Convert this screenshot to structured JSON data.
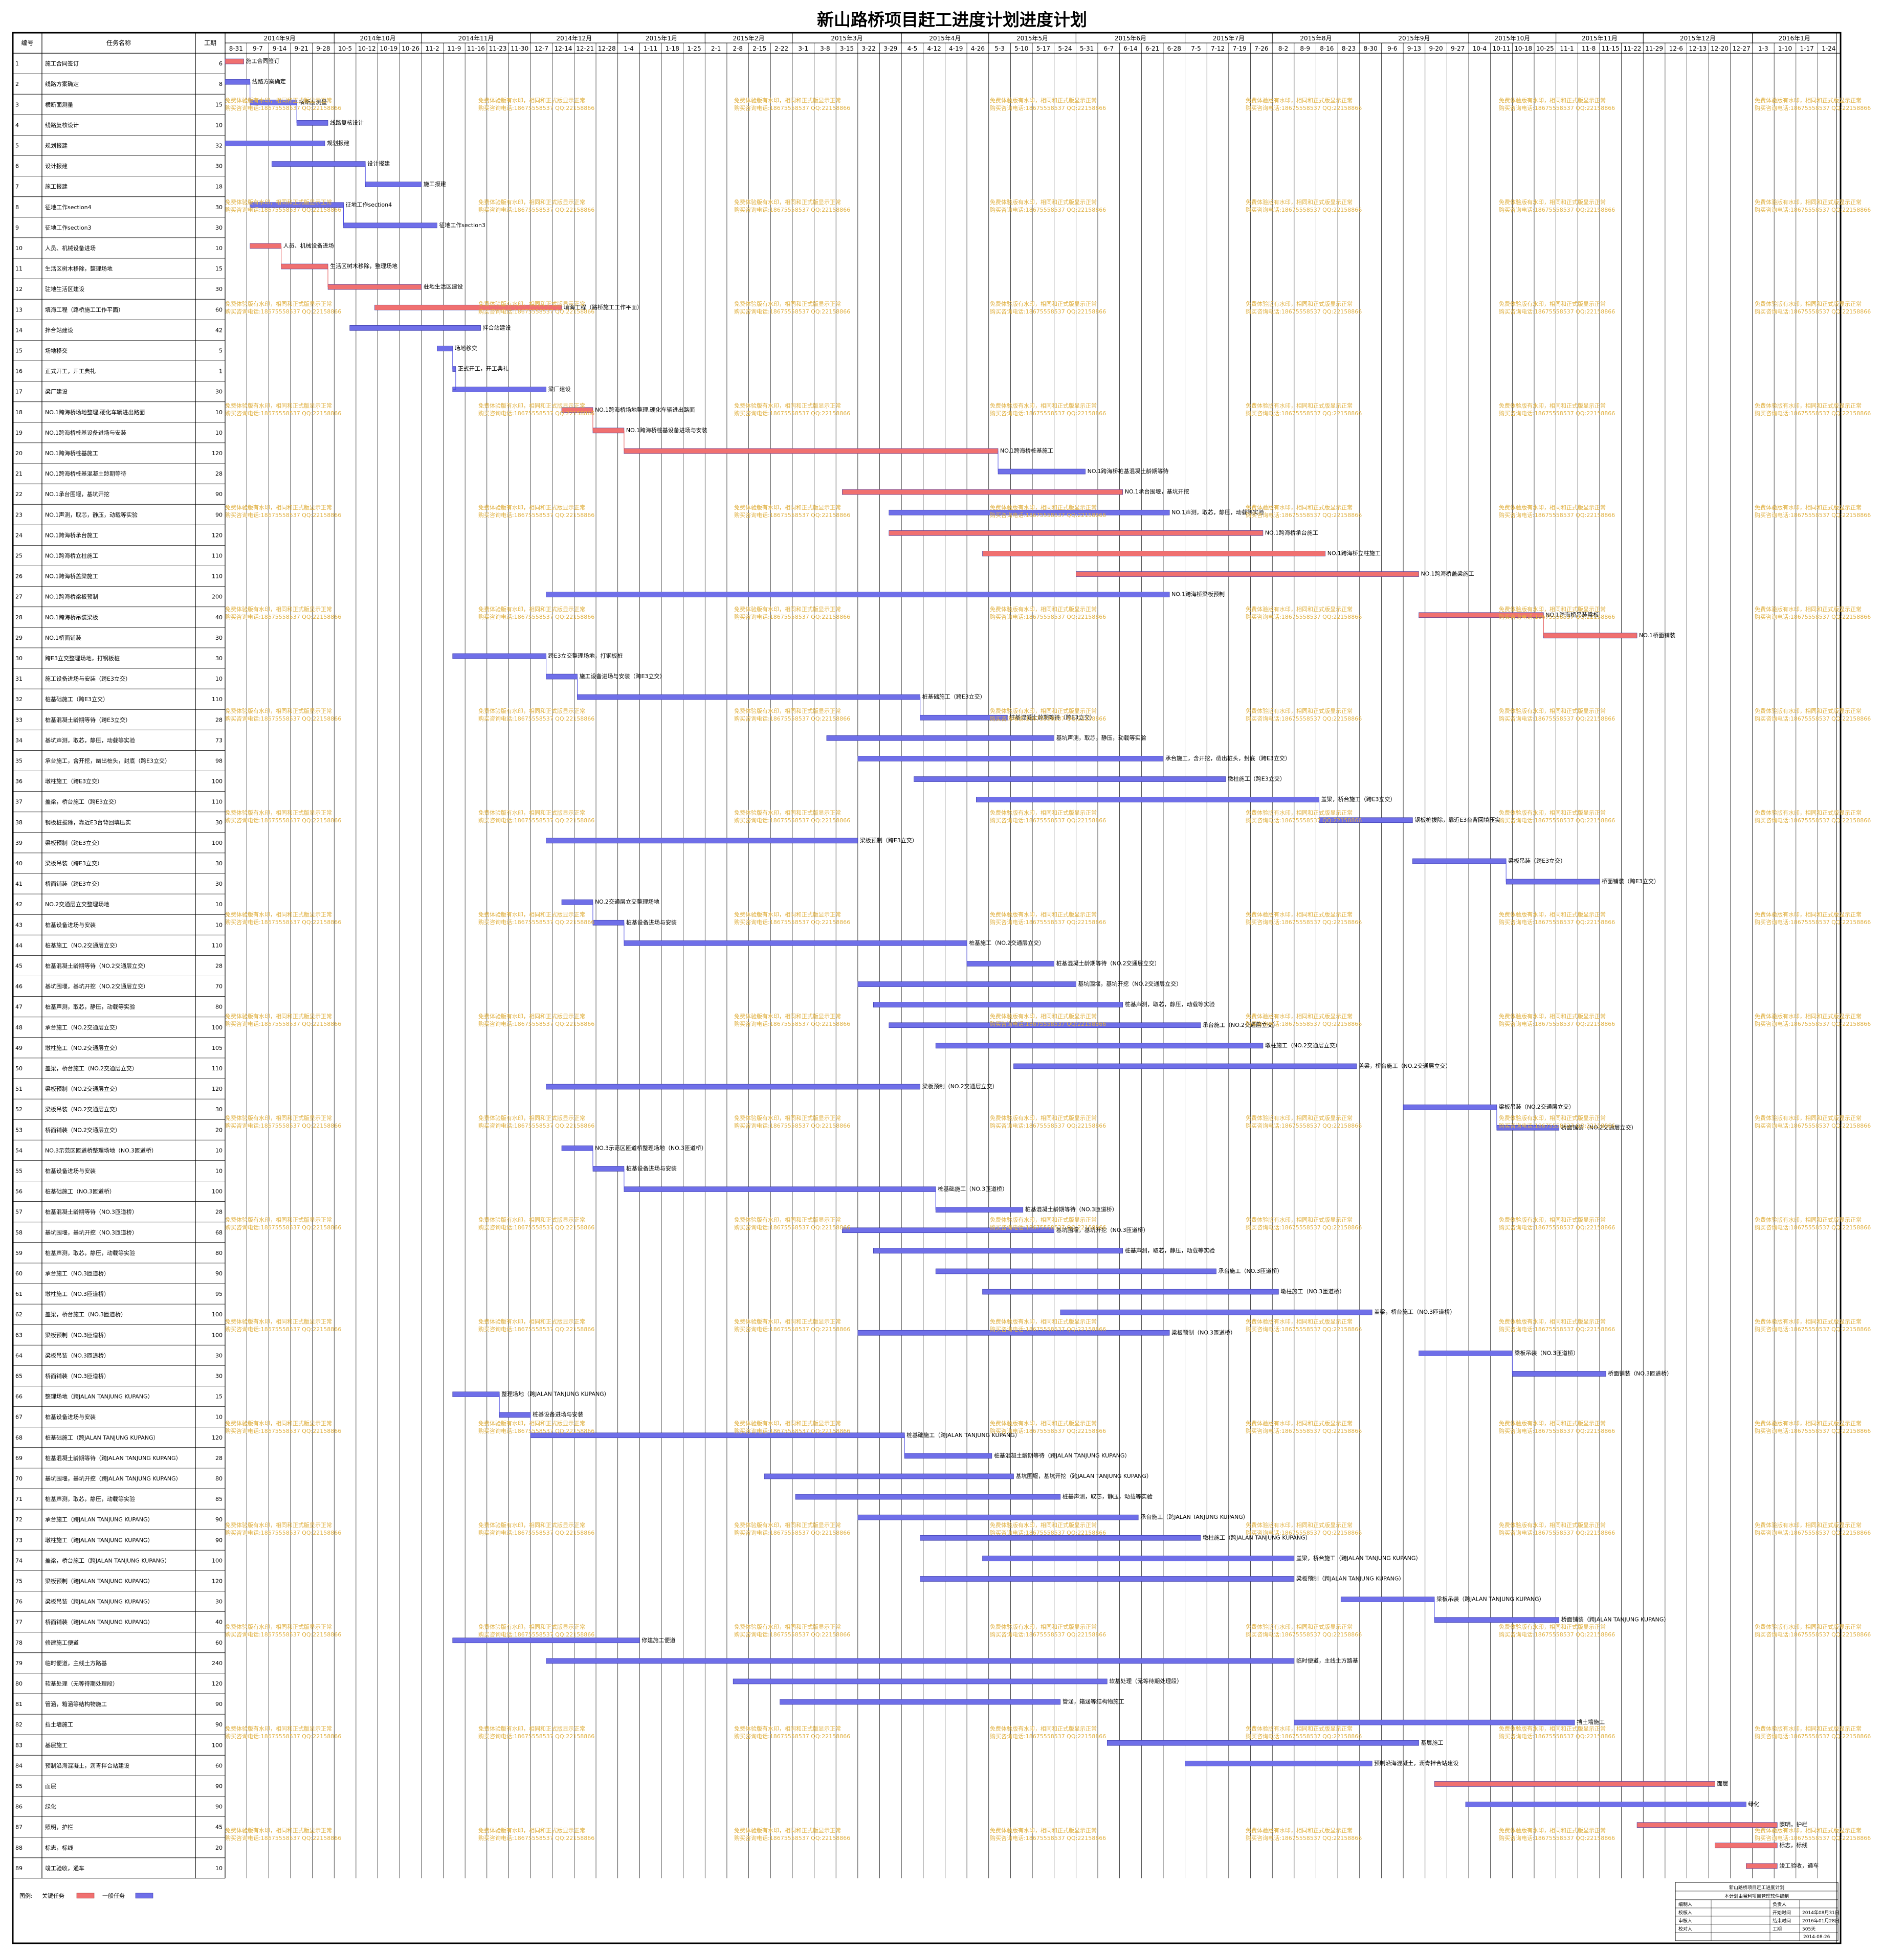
{
  "title": "新山路桥项目赶工进度计划进度计划",
  "columns": {
    "id": "编号",
    "name": "任务名称",
    "dur": "工期"
  },
  "colors": {
    "critical": "#f07070",
    "normal": "#6f6fe8",
    "link_normal": "#4a4ae0",
    "link_critical": "#e04848",
    "grid": "#000000",
    "watermark": "#e0b040"
  },
  "chart_data": {
    "type": "gantt",
    "title": "新山路桥项目赶工进度计划进度计划",
    "time_unit": "days since 2014-08-31",
    "months": [
      {
        "label": "2014年9月",
        "start": 0
      },
      {
        "label": "2014年10月",
        "start": 35
      },
      {
        "label": "2014年11月",
        "start": 63
      },
      {
        "label": "2014年12月",
        "start": 98
      },
      {
        "label": "2015年1月",
        "start": 126
      },
      {
        "label": "2015年2月",
        "start": 154
      },
      {
        "label": "2015年3月",
        "start": 182
      },
      {
        "label": "2015年4月",
        "start": 217
      },
      {
        "label": "2015年5月",
        "start": 245
      },
      {
        "label": "2015年6月",
        "start": 273
      },
      {
        "label": "2015年7月",
        "start": 308
      },
      {
        "label": "2015年8月",
        "start": 336
      },
      {
        "label": "2015年9月",
        "start": 364
      },
      {
        "label": "2015年10月",
        "start": 399
      },
      {
        "label": "2015年11月",
        "start": 427
      },
      {
        "label": "2015年12月",
        "start": 455
      },
      {
        "label": "2016年1月",
        "start": 490
      }
    ],
    "weeks": [
      "8-31",
      "9-7",
      "9-14",
      "9-21",
      "9-28",
      "10-5",
      "10-12",
      "10-19",
      "10-26",
      "11-2",
      "11-9",
      "11-16",
      "11-23",
      "11-30",
      "12-7",
      "12-14",
      "12-21",
      "12-28",
      "1-4",
      "1-11",
      "1-18",
      "1-25",
      "2-1",
      "2-8",
      "2-15",
      "2-22",
      "3-1",
      "3-8",
      "3-15",
      "3-22",
      "3-29",
      "4-5",
      "4-12",
      "4-19",
      "4-26",
      "5-3",
      "5-10",
      "5-17",
      "5-24",
      "5-31",
      "6-7",
      "6-14",
      "6-21",
      "6-28",
      "7-5",
      "7-12",
      "7-19",
      "7-26",
      "8-2",
      "8-9",
      "8-16",
      "8-23",
      "8-30",
      "9-6",
      "9-13",
      "9-20",
      "9-27",
      "10-4",
      "10-11",
      "10-18",
      "10-25",
      "11-1",
      "11-8",
      "11-15",
      "11-22",
      "11-29",
      "12-6",
      "12-13",
      "12-20",
      "12-27",
      "1-3",
      "1-10",
      "1-17",
      "1-24"
    ],
    "tasks": [
      {
        "id": "1",
        "name": "施工合同签订",
        "dur": "6",
        "start": 0,
        "type": "critical"
      },
      {
        "id": "2",
        "name": "线路方案确定",
        "dur": "8",
        "start": 0,
        "type": "normal"
      },
      {
        "id": "3",
        "name": "横断面测量",
        "dur": "15",
        "start": 8,
        "type": "normal"
      },
      {
        "id": "4",
        "name": "线路复核设计",
        "dur": "10",
        "start": 23,
        "type": "normal"
      },
      {
        "id": "5",
        "name": "规划报建",
        "dur": "32",
        "start": 0,
        "type": "normal"
      },
      {
        "id": "6",
        "name": "设计报建",
        "dur": "30",
        "start": 15,
        "type": "normal"
      },
      {
        "id": "7",
        "name": "施工报建",
        "dur": "18",
        "start": 45,
        "type": "normal"
      },
      {
        "id": "8",
        "name": "征地工作section4",
        "dur": "30",
        "start": 8,
        "type": "normal"
      },
      {
        "id": "9",
        "name": "征地工作section3",
        "dur": "30",
        "start": 38,
        "type": "normal"
      },
      {
        "id": "10",
        "name": "人员、机械设备进场",
        "dur": "10",
        "start": 8,
        "type": "critical"
      },
      {
        "id": "11",
        "name": "生活区树木移除，整理场地",
        "dur": "15",
        "start": 18,
        "type": "critical"
      },
      {
        "id": "12",
        "name": "驻地生活区建设",
        "dur": "30",
        "start": 33,
        "type": "critical"
      },
      {
        "id": "13",
        "name": "填海工程（路桥施工工作平面）",
        "dur": "60",
        "start": 48,
        "type": "critical"
      },
      {
        "id": "14",
        "name": "拌合站建设",
        "dur": "42",
        "start": 40,
        "type": "normal"
      },
      {
        "id": "15",
        "name": "场地移交",
        "dur": "5",
        "start": 68,
        "type": "normal"
      },
      {
        "id": "16",
        "name": "正式开工，开工典礼",
        "dur": "1",
        "start": 73,
        "type": "normal"
      },
      {
        "id": "17",
        "name": "梁厂建设",
        "dur": "30",
        "start": 73,
        "type": "normal"
      },
      {
        "id": "18",
        "name": "NO.1跨海桥场地整理,硬化车辆进出路面",
        "dur": "10",
        "start": 108,
        "type": "critical"
      },
      {
        "id": "19",
        "name": "NO.1跨海桥桩基设备进场与安装",
        "dur": "10",
        "start": 118,
        "type": "critical"
      },
      {
        "id": "20",
        "name": "NO.1跨海桥桩基施工",
        "dur": "120",
        "start": 128,
        "type": "critical"
      },
      {
        "id": "21",
        "name": "NO.1跨海桥桩基混凝土龄期等待",
        "dur": "28",
        "start": 248,
        "type": "normal"
      },
      {
        "id": "22",
        "name": "NO.1承台围堰，基坑开挖",
        "dur": "90",
        "start": 198,
        "type": "critical"
      },
      {
        "id": "23",
        "name": "NO.1声测，取芯，静压，动载等实验",
        "dur": "90",
        "start": 213,
        "type": "normal"
      },
      {
        "id": "24",
        "name": "NO.1跨海桥承台施工",
        "dur": "120",
        "start": 213,
        "type": "critical"
      },
      {
        "id": "25",
        "name": "NO.1跨海桥立柱施工",
        "dur": "110",
        "start": 243,
        "type": "critical"
      },
      {
        "id": "26",
        "name": "NO.1跨海桥盖梁施工",
        "dur": "110",
        "start": 273,
        "type": "critical"
      },
      {
        "id": "27",
        "name": "NO.1跨海桥梁板预制",
        "dur": "200",
        "start": 103,
        "type": "normal"
      },
      {
        "id": "28",
        "name": "NO.1跨海桥吊装梁板",
        "dur": "40",
        "start": 383,
        "type": "critical"
      },
      {
        "id": "29",
        "name": "NO.1桥面铺装",
        "dur": "30",
        "start": 423,
        "type": "critical"
      },
      {
        "id": "30",
        "name": "跨E3立交整理场地，打钢板桩",
        "dur": "30",
        "start": 73,
        "type": "normal"
      },
      {
        "id": "31",
        "name": "施工设备进场与安装（跨E3立交）",
        "dur": "10",
        "start": 103,
        "type": "normal"
      },
      {
        "id": "32",
        "name": "桩基础施工（跨E3立交）",
        "dur": "110",
        "start": 113,
        "type": "normal"
      },
      {
        "id": "33",
        "name": "桩基混凝土龄期等待（跨E3立交）",
        "dur": "28",
        "start": 223,
        "type": "normal"
      },
      {
        "id": "34",
        "name": "基坑声测，取芯，静压，动载等实验",
        "dur": "73",
        "start": 193,
        "type": "normal"
      },
      {
        "id": "35",
        "name": "承台施工，含开挖，凿出桩头，封底（跨E3立交）",
        "dur": "98",
        "start": 203,
        "type": "normal"
      },
      {
        "id": "36",
        "name": "墩柱施工（跨E3立交）",
        "dur": "100",
        "start": 221,
        "type": "normal"
      },
      {
        "id": "37",
        "name": "盖梁，桥台施工（跨E3立交）",
        "dur": "110",
        "start": 241,
        "type": "normal"
      },
      {
        "id": "38",
        "name": "钢板桩拔除，靠近E3台背回填压实",
        "dur": "30",
        "start": 351,
        "type": "normal"
      },
      {
        "id": "39",
        "name": "梁板预制（跨E3立交）",
        "dur": "100",
        "start": 103,
        "type": "normal"
      },
      {
        "id": "40",
        "name": "梁板吊装（跨E3立交）",
        "dur": "30",
        "start": 381,
        "type": "normal"
      },
      {
        "id": "41",
        "name": "桥面铺装（跨E3立交）",
        "dur": "30",
        "start": 411,
        "type": "normal"
      },
      {
        "id": "42",
        "name": "NO.2交通层立交整理场地",
        "dur": "10",
        "start": 108,
        "type": "normal"
      },
      {
        "id": "43",
        "name": "桩基设备进场与安装",
        "dur": "10",
        "start": 118,
        "type": "normal"
      },
      {
        "id": "44",
        "name": "桩基施工（NO.2交通层立交）",
        "dur": "110",
        "start": 128,
        "type": "normal"
      },
      {
        "id": "45",
        "name": "桩基混凝土龄期等待（NO.2交通层立交）",
        "dur": "28",
        "start": 238,
        "type": "normal"
      },
      {
        "id": "46",
        "name": "基坑围堰，基坑开挖（NO.2交通层立交）",
        "dur": "70",
        "start": 203,
        "type": "normal"
      },
      {
        "id": "47",
        "name": "桩基声测，取芯，静压，动载等实验",
        "dur": "80",
        "start": 208,
        "type": "normal"
      },
      {
        "id": "48",
        "name": "承台施工（NO.2交通层立交）",
        "dur": "100",
        "start": 213,
        "type": "normal"
      },
      {
        "id": "49",
        "name": "墩柱施工（NO.2交通层立交）",
        "dur": "105",
        "start": 228,
        "type": "normal"
      },
      {
        "id": "50",
        "name": "盖梁，桥台施工（NO.2交通层立交）",
        "dur": "110",
        "start": 253,
        "type": "normal"
      },
      {
        "id": "51",
        "name": "梁板预制（NO.2交通层立交）",
        "dur": "120",
        "start": 103,
        "type": "normal"
      },
      {
        "id": "52",
        "name": "梁板吊装（NO.2交通层立交）",
        "dur": "30",
        "start": 378,
        "type": "normal"
      },
      {
        "id": "53",
        "name": "桥面铺装（NO.2交通层立交）",
        "dur": "20",
        "start": 408,
        "type": "normal"
      },
      {
        "id": "54",
        "name": "NO.3示范区匝道桥整理场地（NO.3匝道桥）",
        "dur": "10",
        "start": 108,
        "type": "normal"
      },
      {
        "id": "55",
        "name": "桩基设备进场与安装",
        "dur": "10",
        "start": 118,
        "type": "normal"
      },
      {
        "id": "56",
        "name": "桩基础施工（NO.3匝道桥）",
        "dur": "100",
        "start": 128,
        "type": "normal"
      },
      {
        "id": "57",
        "name": "桩基混凝土龄期等待（NO.3匝道桥）",
        "dur": "28",
        "start": 228,
        "type": "normal"
      },
      {
        "id": "58",
        "name": "基坑围堰，基坑开挖（NO.3匝道桥）",
        "dur": "68",
        "start": 198,
        "type": "normal"
      },
      {
        "id": "59",
        "name": "桩基声测，取芯，静压，动载等实验",
        "dur": "80",
        "start": 208,
        "type": "normal"
      },
      {
        "id": "60",
        "name": "承台施工（NO.3匝道桥）",
        "dur": "90",
        "start": 228,
        "type": "normal"
      },
      {
        "id": "61",
        "name": "墩柱施工（NO.3匝道桥）",
        "dur": "95",
        "start": 243,
        "type": "normal"
      },
      {
        "id": "62",
        "name": "盖梁，桥台施工（NO.3匝道桥）",
        "dur": "100",
        "start": 268,
        "type": "normal"
      },
      {
        "id": "63",
        "name": "梁板预制（NO.3匝道桥）",
        "dur": "100",
        "start": 203,
        "type": "normal"
      },
      {
        "id": "64",
        "name": "梁板吊装（NO.3匝道桥）",
        "dur": "30",
        "start": 383,
        "type": "normal"
      },
      {
        "id": "65",
        "name": "桥面铺装（NO.3匝道桥）",
        "dur": "30",
        "start": 413,
        "type": "normal"
      },
      {
        "id": "66",
        "name": "整理场地（跨JALAN TANJUNG KUPANG）",
        "dur": "15",
        "start": 73,
        "type": "normal"
      },
      {
        "id": "67",
        "name": "桩基设备进场与安装",
        "dur": "10",
        "start": 88,
        "type": "normal"
      },
      {
        "id": "68",
        "name": "桩基础施工（跨JALAN TANJUNG KUPANG）",
        "dur": "120",
        "start": 98,
        "type": "normal"
      },
      {
        "id": "69",
        "name": "桩基混凝土龄期等待（跨JALAN TANJUNG KUPANG）",
        "dur": "28",
        "start": 218,
        "type": "normal"
      },
      {
        "id": "70",
        "name": "基坑围堰，基坑开挖（跨JALAN TANJUNG KUPANG）",
        "dur": "80",
        "start": 173,
        "type": "normal"
      },
      {
        "id": "71",
        "name": "桩基声测，取芯，静压，动载等实验",
        "dur": "85",
        "start": 183,
        "type": "normal"
      },
      {
        "id": "72",
        "name": "承台施工（跨JALAN TANJUNG KUPANG）",
        "dur": "90",
        "start": 203,
        "type": "normal"
      },
      {
        "id": "73",
        "name": "墩柱施工（跨JALAN TANJUNG KUPANG）",
        "dur": "90",
        "start": 223,
        "type": "normal"
      },
      {
        "id": "74",
        "name": "盖梁，桥台施工（跨JALAN TANJUNG KUPANG）",
        "dur": "100",
        "start": 243,
        "type": "normal"
      },
      {
        "id": "75",
        "name": "梁板预制（跨JALAN TANJUNG KUPANG）",
        "dur": "120",
        "start": 223,
        "type": "normal"
      },
      {
        "id": "76",
        "name": "梁板吊装（跨JALAN TANJUNG KUPANG）",
        "dur": "30",
        "start": 358,
        "type": "normal"
      },
      {
        "id": "77",
        "name": "桥面铺装（跨JALAN TANJUNG KUPANG）",
        "dur": "40",
        "start": 388,
        "type": "normal"
      },
      {
        "id": "78",
        "name": "修建施工便道",
        "dur": "60",
        "start": 73,
        "type": "normal"
      },
      {
        "id": "79",
        "name": "临时便道，主线土方路基",
        "dur": "240",
        "start": 103,
        "type": "normal"
      },
      {
        "id": "80",
        "name": "软基处理（无等待期处理段）",
        "dur": "120",
        "start": 163,
        "type": "normal"
      },
      {
        "id": "81",
        "name": "管涵，箱涵等结构物施工",
        "dur": "90",
        "start": 178,
        "type": "normal"
      },
      {
        "id": "82",
        "name": "挡土墙施工",
        "dur": "90",
        "start": 343,
        "type": "normal"
      },
      {
        "id": "83",
        "name": "基层施工",
        "dur": "100",
        "start": 283,
        "type": "normal"
      },
      {
        "id": "84",
        "name": "预制沿海混凝土，沥青拌合站建设",
        "dur": "60",
        "start": 308,
        "type": "normal"
      },
      {
        "id": "85",
        "name": "面层",
        "dur": "90",
        "start": 388,
        "type": "critical"
      },
      {
        "id": "86",
        "name": "绿化",
        "dur": "90",
        "start": 398,
        "type": "normal"
      },
      {
        "id": "87",
        "name": "照明，护栏",
        "dur": "45",
        "start": 453,
        "type": "critical"
      },
      {
        "id": "88",
        "name": "标志，标线",
        "dur": "20",
        "start": 478,
        "type": "critical"
      },
      {
        "id": "89",
        "name": "竣工验收，通车",
        "dur": "10",
        "start": 488,
        "type": "critical"
      }
    ]
  },
  "legend": {
    "label": "图例:",
    "critical": "关键任务",
    "normal": "一般任务"
  },
  "watermark": {
    "line1": "免费体验版有水印，相同和正式版显示正常",
    "line2": "购买咨询电话:18675558537 QQ:22158866"
  },
  "footer": {
    "line1": "新山路桥项目赶工进度计划",
    "line2": "本计划由易利项目管理软件编制",
    "rows": [
      {
        "k": "编制人",
        "k2": "负责人",
        "v": ""
      },
      {
        "k": "校核人",
        "k2": "开始时间",
        "v": "2014年08月31日"
      },
      {
        "k": "审核人",
        "k2": "结束时间",
        "v": "2016年01月28日"
      },
      {
        "k": "校对人",
        "k2": "工期",
        "v": "505天"
      }
    ],
    "date": "2014-08-26"
  }
}
